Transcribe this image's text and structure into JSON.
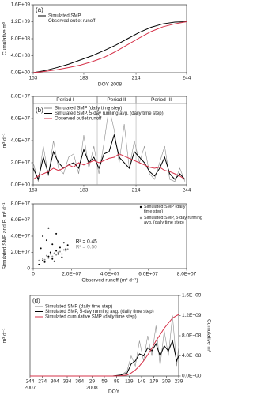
{
  "chart_data": [
    {
      "type": "line",
      "panel_label": "(a)",
      "x_label": "DOY 2008",
      "y_label": "Cumulative m³",
      "xlim": [
        153,
        244
      ],
      "xticks": [
        153,
        183,
        214,
        244
      ],
      "ylim": [
        0,
        1600000000.0
      ],
      "yticks": [
        {
          "value": 0,
          "label": "0.0E+00"
        },
        {
          "value": 400000000.0,
          "label": "4.0E+08"
        },
        {
          "value": 800000000.0,
          "label": "8.0E+08"
        },
        {
          "value": 1200000000.0,
          "label": "1.2E+09"
        },
        {
          "value": 1600000000.0,
          "label": "1.6E+09"
        }
      ],
      "legend": "upper left",
      "x": [
        153,
        160,
        167,
        174,
        181,
        188,
        195,
        202,
        209,
        216,
        223,
        230,
        237,
        244
      ],
      "series": [
        {
          "name": "Simulated SMP",
          "color": "#000000",
          "values": [
            0,
            50000000.0,
            120000000.0,
            200000000.0,
            300000000.0,
            400000000.0,
            520000000.0,
            650000000.0,
            800000000.0,
            950000000.0,
            1070000000.0,
            1150000000.0,
            1190000000.0,
            1200000000.0
          ]
        },
        {
          "name": "Observed outlet runoff",
          "color": "#d6334a",
          "values": [
            0,
            30000000.0,
            70000000.0,
            120000000.0,
            180000000.0,
            260000000.0,
            360000000.0,
            500000000.0,
            660000000.0,
            820000000.0,
            970000000.0,
            1080000000.0,
            1150000000.0,
            1200000000.0
          ]
        }
      ]
    },
    {
      "type": "line",
      "panel_label": "(b)",
      "y_label": "m³ d⁻¹",
      "xlim": [
        153,
        244
      ],
      "xticks": [
        153,
        183,
        214,
        244
      ],
      "ylim": [
        0,
        80000000.0
      ],
      "yticks": [
        {
          "value": 0,
          "label": "0.0E+00"
        },
        {
          "value": 20000000.0,
          "label": "2.0E+07"
        },
        {
          "value": 40000000.0,
          "label": "4.0E+07"
        },
        {
          "value": 60000000.0,
          "label": "6.0E+07"
        },
        {
          "value": 80000000.0,
          "label": "8.0E+07"
        }
      ],
      "legend": "upper left",
      "periods": [
        {
          "label": "Period I",
          "start": 153,
          "end": 191
        },
        {
          "label": "Period II",
          "start": 191,
          "end": 214
        },
        {
          "label": "Period III",
          "start": 214,
          "end": 244
        }
      ],
      "x": [
        153,
        156,
        159,
        162,
        165,
        168,
        171,
        174,
        177,
        180,
        183,
        186,
        189,
        192,
        195,
        198,
        201,
        204,
        207,
        210,
        213,
        216,
        219,
        222,
        225,
        228,
        231,
        234,
        237,
        240,
        243
      ],
      "series": [
        {
          "name": "Simulated SMP (daily time step)",
          "color": "#8c8c8c",
          "values": [
            20000000.0,
            3000000.0,
            35000000.0,
            8000000.0,
            40000000.0,
            15000000.0,
            10000000.0,
            25000000.0,
            28000000.0,
            10000000.0,
            45000000.0,
            15000000.0,
            35000000.0,
            10000000.0,
            38000000.0,
            70000000.0,
            50000000.0,
            20000000.0,
            55000000.0,
            15000000.0,
            40000000.0,
            20000000.0,
            35000000.0,
            10000000.0,
            5000000.0,
            20000000.0,
            35000000.0,
            5000000.0,
            3000000.0,
            15000000.0,
            3000000.0
          ]
        },
        {
          "name": "Simulated SMP, 5-day running avg. (daily time step)",
          "color": "#000000",
          "values": [
            15000000.0,
            5000000.0,
            25000000.0,
            10000000.0,
            30000000.0,
            20000000.0,
            15000000.0,
            18000000.0,
            20000000.0,
            15000000.0,
            32000000.0,
            20000000.0,
            25000000.0,
            15000000.0,
            28000000.0,
            30000000.0,
            45000000.0,
            25000000.0,
            20000000.0,
            15000000.0,
            30000000.0,
            25000000.0,
            20000000.0,
            12000000.0,
            8000000.0,
            15000000.0,
            25000000.0,
            10000000.0,
            5000000.0,
            10000000.0,
            5000000.0
          ]
        },
        {
          "name": "Observed outlet runoff",
          "color": "#d6334a",
          "values": [
            5000000.0,
            8000000.0,
            10000000.0,
            12000000.0,
            15000000.0,
            13000000.0,
            15000000.0,
            18000000.0,
            16000000.0,
            20000000.0,
            18000000.0,
            20000000.0,
            22000000.0,
            20000000.0,
            22000000.0,
            24000000.0,
            25000000.0,
            28000000.0,
            26000000.0,
            24000000.0,
            22000000.0,
            20000000.0,
            18000000.0,
            16000000.0,
            15000000.0,
            16000000.0,
            13000000.0,
            12000000.0,
            10000000.0,
            8000000.0,
            5000000.0
          ]
        }
      ]
    },
    {
      "type": "scatter",
      "x_label": "Observed runoff (m³ d⁻¹)",
      "y_label": "Simulated SMP and P. m³ d⁻¹",
      "xlim": [
        0,
        80000000.0
      ],
      "xticks": [
        0,
        {
          "value": 20000000.0,
          "label": "2.0E+07"
        },
        {
          "value": 40000000.0,
          "label": "4.0E+07"
        },
        {
          "value": 60000000.0,
          "label": "6.0E+07"
        },
        {
          "value": 80000000.0,
          "label": "8.0E+07"
        }
      ],
      "ylim": [
        0,
        80000000.0
      ],
      "yticks": [
        0,
        {
          "value": 20000000.0,
          "label": "2.0E+07"
        },
        {
          "value": 40000000.0,
          "label": "4.0E+07"
        },
        {
          "value": 60000000.0,
          "label": "6.0E+07"
        },
        {
          "value": 80000000.0,
          "label": "8.0E+07"
        }
      ],
      "legend": "upper right",
      "annotations": [
        {
          "text": "R² = 0.45",
          "color": "#000000"
        },
        {
          "text": "R² = 0.50",
          "color": "#8c8c8c"
        }
      ],
      "series": [
        {
          "name": "Simulated SMP (daily time step)",
          "color": "#000000",
          "x": [
            3000000.0,
            4000000.0,
            5000000.0,
            5000000.0,
            6000000.0,
            7000000.0,
            8000000.0,
            8000000.0,
            9000000.0,
            10000000.0,
            10000000.0,
            11000000.0,
            12000000.0,
            12000000.0,
            13000000.0,
            14000000.0,
            15000000.0,
            16000000.0,
            17000000.0,
            18000000.0
          ],
          "values": [
            5000000.0,
            25000000.0,
            10000000.0,
            40000000.0,
            8000000.0,
            35000000.0,
            15000000.0,
            50000000.0,
            20000000.0,
            12000000.0,
            30000000.0,
            9000000.0,
            22000000.0,
            43000000.0,
            18000000.0,
            26000000.0,
            14000000.0,
            32000000.0,
            24000000.0,
            29000000.0
          ]
        },
        {
          "name": "Simulated SMP, 5-day running avg. (daily time step)",
          "color": "#8c8c8c",
          "x": [
            3000000.0,
            5000000.0,
            6000000.0,
            7000000.0,
            8000000.0,
            9000000.0,
            10000000.0,
            11000000.0,
            12000000.0,
            13000000.0,
            14000000.0,
            15000000.0,
            16000000.0,
            17000000.0,
            18000000.0
          ],
          "values": [
            10000000.0,
            12000000.0,
            11000000.0,
            16000000.0,
            13000000.0,
            18000000.0,
            15000000.0,
            19000000.0,
            17000000.0,
            20000000.0,
            21000000.0,
            18000000.0,
            23000000.0,
            22000000.0,
            24000000.0
          ]
        }
      ]
    },
    {
      "type": "line",
      "panel_label": "(d)",
      "x_label": "DOY",
      "y_label": "m³ d⁻¹",
      "y2_label": "Cumulative m³",
      "xlim": [
        0,
        360
      ],
      "xticks": [
        {
          "value": 0,
          "label": "244"
        },
        {
          "value": 30,
          "label": "274"
        },
        {
          "value": 60,
          "label": "304"
        },
        {
          "value": 90,
          "label": "334"
        },
        {
          "value": 120,
          "label": "364"
        },
        {
          "value": 150,
          "label": "29"
        },
        {
          "value": 180,
          "label": "59"
        },
        {
          "value": 210,
          "label": "89"
        },
        {
          "value": 240,
          "label": "119"
        },
        {
          "value": 270,
          "label": "149"
        },
        {
          "value": 300,
          "label": "179"
        },
        {
          "value": 330,
          "label": "209"
        },
        {
          "value": 360,
          "label": "239"
        }
      ],
      "xtick_years": [
        {
          "value": 0,
          "label": "2007"
        },
        {
          "value": 150,
          "label": "2008"
        }
      ],
      "ylim": [
        0,
        80000000.0
      ],
      "y2lim": [
        0,
        1600000000.0
      ],
      "y2ticks": [
        {
          "value": 0,
          "label": "0.0E+00"
        },
        {
          "value": 400000000.0,
          "label": "4.0E+08"
        },
        {
          "value": 800000000.0,
          "label": "8.0E+08"
        },
        {
          "value": 1200000000.0,
          "label": "1.2E+09"
        },
        {
          "value": 1600000000.0,
          "label": "1.6E+09"
        }
      ],
      "legend": "upper left",
      "x": [
        0,
        50,
        100,
        150,
        200,
        220,
        235,
        245,
        255,
        265,
        275,
        285,
        295,
        305,
        315,
        325,
        335,
        345,
        355,
        360
      ],
      "series": [
        {
          "name": "Simulated SMP (daily time step)",
          "color": "#8c8c8c",
          "values": [
            0,
            0,
            0,
            0,
            0,
            1000000.0,
            5000000.0,
            20000000.0,
            10000000.0,
            35000000.0,
            15000000.0,
            40000000.0,
            20000000.0,
            50000000.0,
            10000000.0,
            45000000.0,
            20000000.0,
            60000000.0,
            10000000.0,
            30000000.0
          ]
        },
        {
          "name": "Simulated SMP, 5-day running avg. (daily time step)",
          "color": "#000000",
          "values": [
            0,
            0,
            0,
            0,
            0,
            1000000.0,
            3000000.0,
            12000000.0,
            15000000.0,
            22000000.0,
            20000000.0,
            28000000.0,
            25000000.0,
            32000000.0,
            20000000.0,
            30000000.0,
            25000000.0,
            35000000.0,
            15000000.0,
            20000000.0
          ]
        },
        {
          "name": "Simulated cumulative SMP (daily time step)",
          "color": "#d6334a",
          "axis": "y2",
          "values": [
            0,
            0,
            0,
            0,
            0,
            5000000.0,
            20000000.0,
            60000000.0,
            120000000.0,
            200000000.0,
            300000000.0,
            420000000.0,
            550000000.0,
            700000000.0,
            820000000.0,
            950000000.0,
            1050000000.0,
            1150000000.0,
            1200000000.0,
            1220000000.0
          ]
        }
      ]
    }
  ]
}
